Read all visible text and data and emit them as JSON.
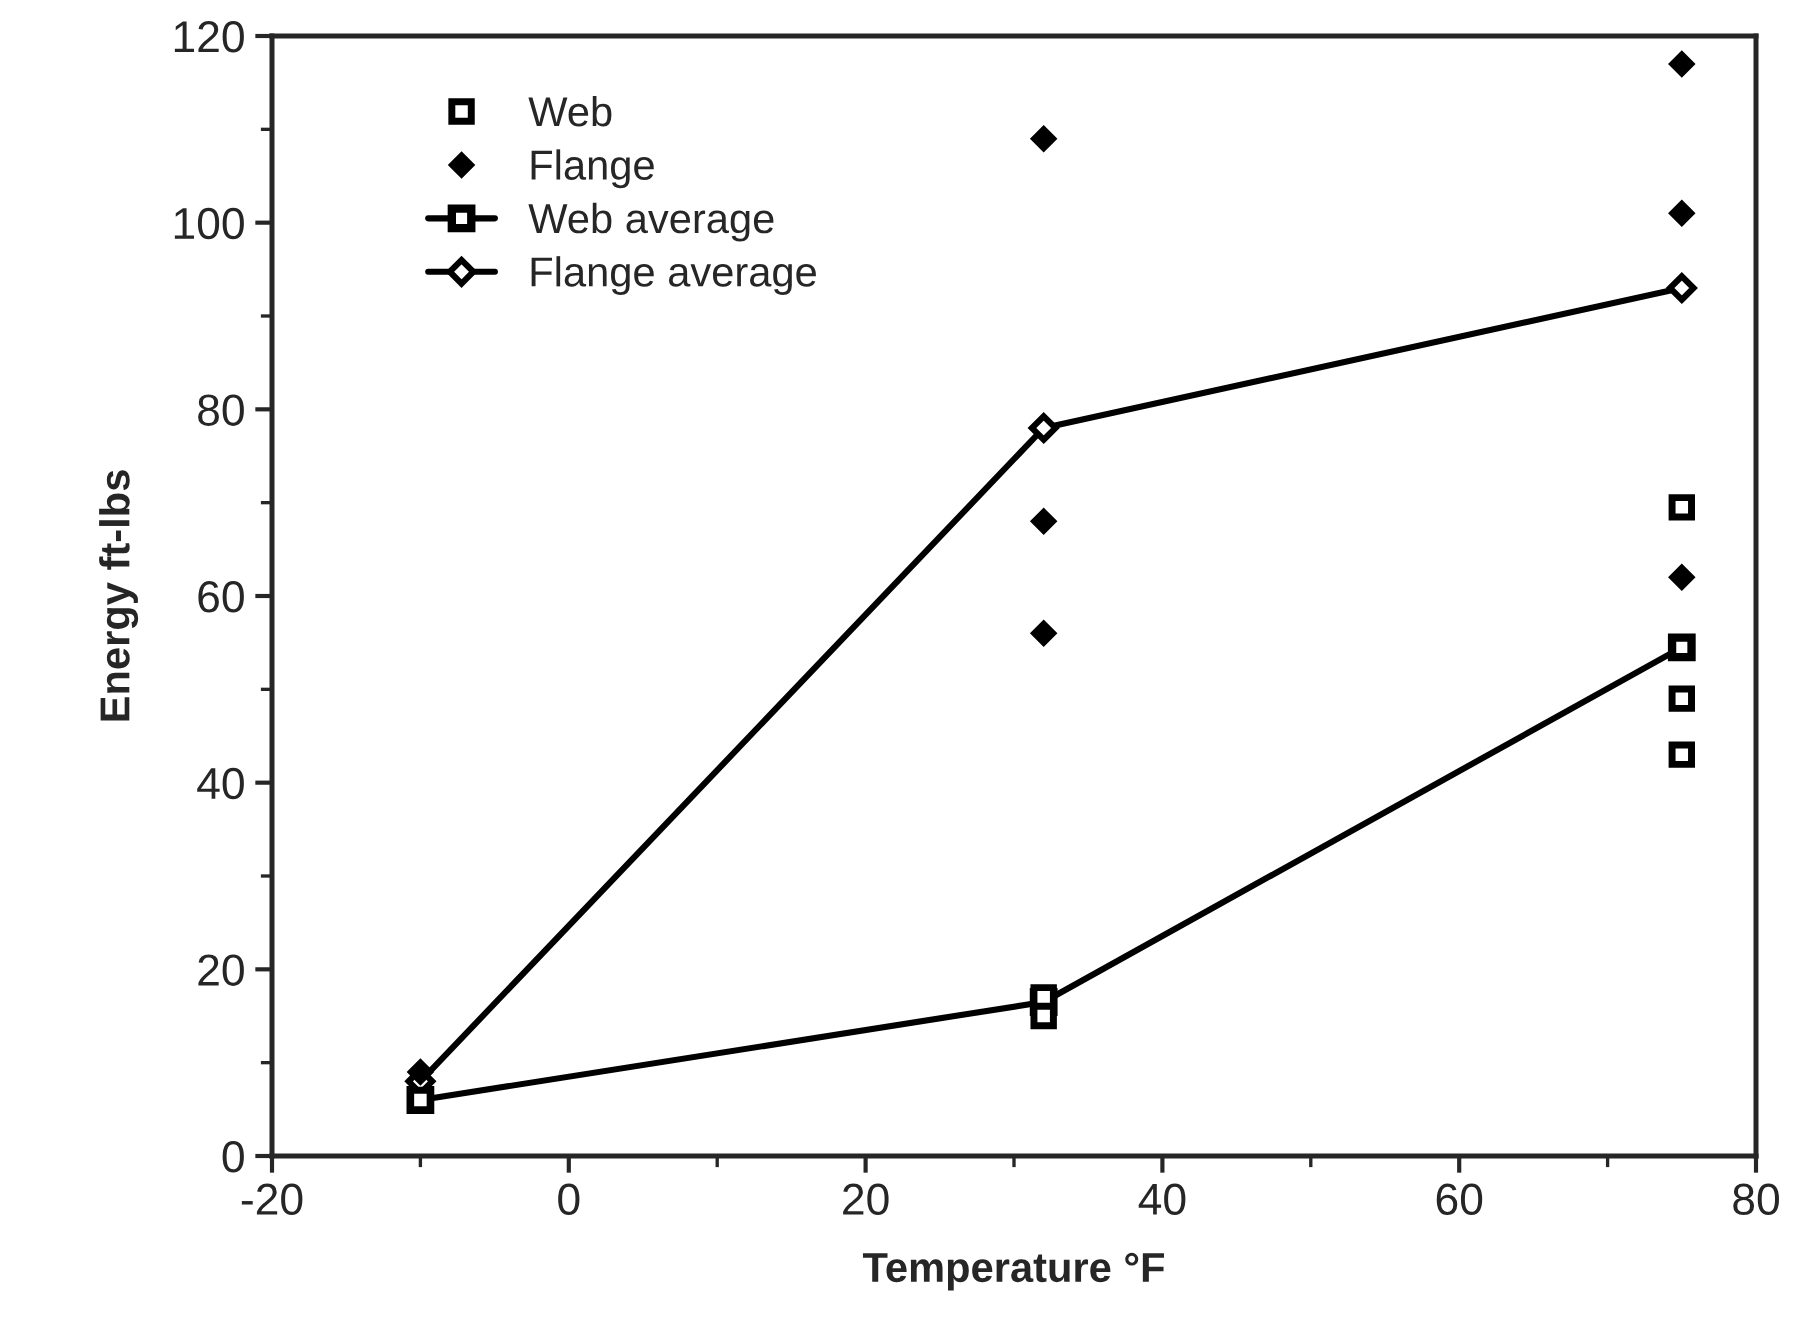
{
  "chart_data": {
    "type": "scatter",
    "xlabel": "Temperature °F",
    "ylabel": "Energy ft-lbs",
    "xlim": [
      -20,
      80
    ],
    "xticks": [
      -20,
      0,
      20,
      40,
      60,
      80
    ],
    "ylim": [
      0,
      120
    ],
    "yticks": [
      0,
      20,
      40,
      60,
      80,
      100,
      120
    ],
    "grid": false,
    "legend": "top left",
    "series": [
      {
        "name": "Web",
        "marker": "square",
        "color": "#000000",
        "x": [
          -10,
          32,
          32,
          75,
          75,
          75
        ],
        "values": [
          6,
          17,
          15,
          69.5,
          49,
          43
        ]
      },
      {
        "name": "Flange",
        "marker": "diamond",
        "color": "#000000",
        "x": [
          -10,
          32,
          32,
          32,
          75,
          75,
          75
        ],
        "values": [
          9,
          109,
          68,
          56,
          117,
          101,
          62
        ]
      },
      {
        "name": "Web average",
        "type": "line",
        "marker": "square",
        "line_style": "solid",
        "color": "#000000",
        "x": [
          -10,
          32,
          75
        ],
        "values": [
          6,
          16.5,
          54.5
        ]
      },
      {
        "name": "Flange average",
        "type": "line",
        "marker": "diamond",
        "line_style": "solid",
        "color": "#000000",
        "x": [
          -10,
          32,
          75
        ],
        "values": [
          8,
          78,
          93
        ]
      }
    ]
  }
}
